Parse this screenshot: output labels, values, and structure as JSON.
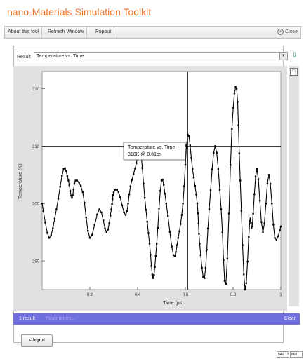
{
  "app": {
    "title": "nano-Materials Simulation Toolkit"
  },
  "toolbar": {
    "about_label": "About this tool",
    "refresh_label": "Refresh Window",
    "popout_label": "Popout",
    "close_label": "Close"
  },
  "result": {
    "label": "Result",
    "selected": "Temperature vs. Time"
  },
  "tooltip": {
    "title": "Temperature vs. Time",
    "value": "310K @ 0.61ps"
  },
  "status": {
    "count_label": "1 result",
    "params_label": "Parameters...",
    "clear_label": "Clear"
  },
  "input_button": {
    "label": "< Input"
  },
  "window_size": {
    "width": "840",
    "height": "860",
    "separator": "x"
  },
  "colors": {
    "title": "#e8742b",
    "status_bar": "#6f6fe0",
    "plot_line": "#000000"
  },
  "chart_data": {
    "type": "line",
    "xlabel": "Time (ps)",
    "ylabel": "Temperature (K)",
    "xlim": [
      0,
      1
    ],
    "ylim": [
      285,
      323
    ],
    "x_ticks": [
      0.2,
      0.4,
      0.6,
      0.8,
      1
    ],
    "x_tick_labels": [
      "0.2",
      "0.4",
      "0.6",
      "0.8",
      "1"
    ],
    "y_ticks": [
      290,
      300,
      310,
      320
    ],
    "y_tick_labels": [
      "290",
      "300",
      "310",
      "320"
    ],
    "grid": false,
    "crosshair": {
      "x": 0.61,
      "y": 310
    },
    "series": [
      {
        "x": [
          0.0,
          0.03,
          0.06,
          0.09,
          0.11,
          0.125,
          0.14,
          0.17,
          0.2,
          0.24,
          0.27,
          0.29,
          0.3,
          0.32,
          0.35,
          0.37,
          0.395,
          0.41,
          0.43,
          0.45,
          0.465,
          0.48,
          0.5,
          0.52,
          0.55,
          0.57,
          0.59,
          0.61,
          0.63,
          0.65,
          0.66,
          0.68,
          0.7,
          0.725,
          0.75,
          0.77,
          0.795,
          0.815,
          0.83,
          0.85,
          0.87,
          0.88,
          0.9,
          0.925,
          0.95,
          0.975,
          1.0
        ],
        "y": [
          300,
          294,
          299,
          306,
          304,
          301,
          304,
          302,
          294,
          299,
          295,
          299,
          302,
          302,
          298,
          303,
          307,
          310,
          301,
          293,
          287,
          293,
          304,
          300,
          291,
          294,
          300,
          312,
          306,
          300,
          293,
          287,
          299,
          310,
          299,
          286,
          313,
          320,
          304,
          285,
          297,
          296,
          306,
          295,
          305,
          294,
          296
        ]
      }
    ]
  }
}
